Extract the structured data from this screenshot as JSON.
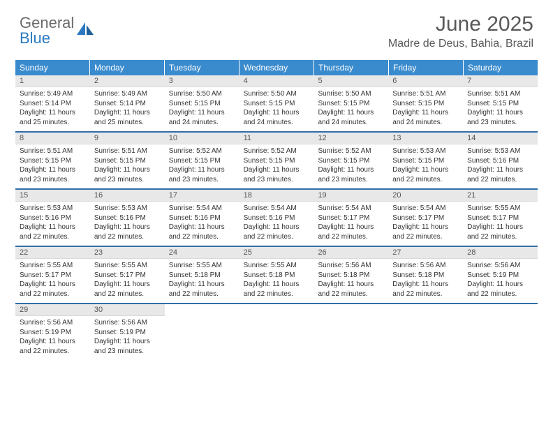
{
  "brand": {
    "word1": "General",
    "word2": "Blue"
  },
  "title": "June 2025",
  "location": "Madre de Deus, Bahia, Brazil",
  "colors": {
    "header_bg": "#3a8bce",
    "week_divider": "#2f6ea8",
    "daynum_bg": "#e8e8e8",
    "text": "#333333",
    "title_text": "#595959"
  },
  "dayNames": [
    "Sunday",
    "Monday",
    "Tuesday",
    "Wednesday",
    "Thursday",
    "Friday",
    "Saturday"
  ],
  "days": [
    {
      "n": 1,
      "sunrise": "5:49 AM",
      "sunset": "5:14 PM",
      "daylight": "11 hours and 25 minutes."
    },
    {
      "n": 2,
      "sunrise": "5:49 AM",
      "sunset": "5:14 PM",
      "daylight": "11 hours and 25 minutes."
    },
    {
      "n": 3,
      "sunrise": "5:50 AM",
      "sunset": "5:15 PM",
      "daylight": "11 hours and 24 minutes."
    },
    {
      "n": 4,
      "sunrise": "5:50 AM",
      "sunset": "5:15 PM",
      "daylight": "11 hours and 24 minutes."
    },
    {
      "n": 5,
      "sunrise": "5:50 AM",
      "sunset": "5:15 PM",
      "daylight": "11 hours and 24 minutes."
    },
    {
      "n": 6,
      "sunrise": "5:51 AM",
      "sunset": "5:15 PM",
      "daylight": "11 hours and 24 minutes."
    },
    {
      "n": 7,
      "sunrise": "5:51 AM",
      "sunset": "5:15 PM",
      "daylight": "11 hours and 23 minutes."
    },
    {
      "n": 8,
      "sunrise": "5:51 AM",
      "sunset": "5:15 PM",
      "daylight": "11 hours and 23 minutes."
    },
    {
      "n": 9,
      "sunrise": "5:51 AM",
      "sunset": "5:15 PM",
      "daylight": "11 hours and 23 minutes."
    },
    {
      "n": 10,
      "sunrise": "5:52 AM",
      "sunset": "5:15 PM",
      "daylight": "11 hours and 23 minutes."
    },
    {
      "n": 11,
      "sunrise": "5:52 AM",
      "sunset": "5:15 PM",
      "daylight": "11 hours and 23 minutes."
    },
    {
      "n": 12,
      "sunrise": "5:52 AM",
      "sunset": "5:15 PM",
      "daylight": "11 hours and 23 minutes."
    },
    {
      "n": 13,
      "sunrise": "5:53 AM",
      "sunset": "5:15 PM",
      "daylight": "11 hours and 22 minutes."
    },
    {
      "n": 14,
      "sunrise": "5:53 AM",
      "sunset": "5:16 PM",
      "daylight": "11 hours and 22 minutes."
    },
    {
      "n": 15,
      "sunrise": "5:53 AM",
      "sunset": "5:16 PM",
      "daylight": "11 hours and 22 minutes."
    },
    {
      "n": 16,
      "sunrise": "5:53 AM",
      "sunset": "5:16 PM",
      "daylight": "11 hours and 22 minutes."
    },
    {
      "n": 17,
      "sunrise": "5:54 AM",
      "sunset": "5:16 PM",
      "daylight": "11 hours and 22 minutes."
    },
    {
      "n": 18,
      "sunrise": "5:54 AM",
      "sunset": "5:16 PM",
      "daylight": "11 hours and 22 minutes."
    },
    {
      "n": 19,
      "sunrise": "5:54 AM",
      "sunset": "5:17 PM",
      "daylight": "11 hours and 22 minutes."
    },
    {
      "n": 20,
      "sunrise": "5:54 AM",
      "sunset": "5:17 PM",
      "daylight": "11 hours and 22 minutes."
    },
    {
      "n": 21,
      "sunrise": "5:55 AM",
      "sunset": "5:17 PM",
      "daylight": "11 hours and 22 minutes."
    },
    {
      "n": 22,
      "sunrise": "5:55 AM",
      "sunset": "5:17 PM",
      "daylight": "11 hours and 22 minutes."
    },
    {
      "n": 23,
      "sunrise": "5:55 AM",
      "sunset": "5:17 PM",
      "daylight": "11 hours and 22 minutes."
    },
    {
      "n": 24,
      "sunrise": "5:55 AM",
      "sunset": "5:18 PM",
      "daylight": "11 hours and 22 minutes."
    },
    {
      "n": 25,
      "sunrise": "5:55 AM",
      "sunset": "5:18 PM",
      "daylight": "11 hours and 22 minutes."
    },
    {
      "n": 26,
      "sunrise": "5:56 AM",
      "sunset": "5:18 PM",
      "daylight": "11 hours and 22 minutes."
    },
    {
      "n": 27,
      "sunrise": "5:56 AM",
      "sunset": "5:18 PM",
      "daylight": "11 hours and 22 minutes."
    },
    {
      "n": 28,
      "sunrise": "5:56 AM",
      "sunset": "5:19 PM",
      "daylight": "11 hours and 22 minutes."
    },
    {
      "n": 29,
      "sunrise": "5:56 AM",
      "sunset": "5:19 PM",
      "daylight": "11 hours and 22 minutes."
    },
    {
      "n": 30,
      "sunrise": "5:56 AM",
      "sunset": "5:19 PM",
      "daylight": "11 hours and 23 minutes."
    }
  ],
  "labels": {
    "sunrise": "Sunrise:",
    "sunset": "Sunset:",
    "daylight": "Daylight:"
  }
}
